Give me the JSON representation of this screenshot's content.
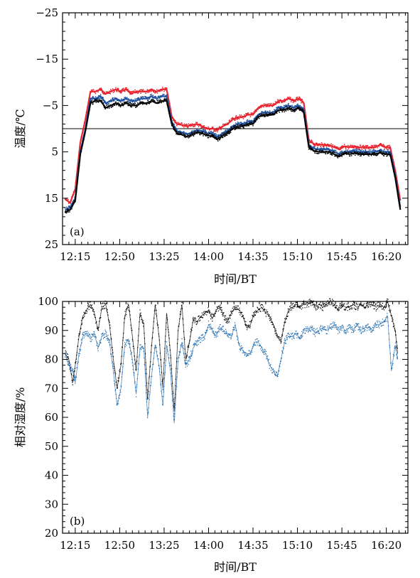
{
  "chart_data": [
    {
      "type": "scatter",
      "panel_label": "(a)",
      "xlabel": "时间/BT",
      "ylabel": "温度/℃",
      "x_ticks": [
        "12:15",
        "12:50",
        "13:25",
        "14:00",
        "14:35",
        "15:10",
        "15:45",
        "16:20"
      ],
      "x_tick_minutes": [
        0,
        35,
        70,
        105,
        140,
        175,
        210,
        245
      ],
      "x_range_minutes": [
        -10,
        262
      ],
      "y_ticks": [
        "−25",
        "−15",
        "−5",
        "5",
        "15",
        "25"
      ],
      "y_tick_values": [
        -25,
        -15,
        -5,
        5,
        15,
        25
      ],
      "ylim": [
        -25,
        25
      ],
      "y_inverted": true,
      "reference_line": 0,
      "grid": false,
      "series": [
        {
          "color": "#e8212b",
          "x": [
            -8,
            -4,
            0,
            4,
            8,
            12,
            16,
            20,
            24,
            28,
            32,
            36,
            40,
            44,
            48,
            52,
            56,
            60,
            64,
            68,
            72,
            76,
            80,
            84,
            88,
            92,
            96,
            100,
            104,
            108,
            112,
            116,
            120,
            124,
            128,
            132,
            136,
            140,
            144,
            148,
            152,
            156,
            160,
            164,
            168,
            172,
            176,
            180,
            184,
            188,
            192,
            196,
            200,
            204,
            208,
            212,
            216,
            220,
            224,
            228,
            232,
            236,
            240,
            244,
            248,
            252,
            256
          ],
          "y": [
            15.2,
            16,
            13,
            3,
            -2,
            -8,
            -8,
            -8.5,
            -7.5,
            -8,
            -8.5,
            -8,
            -8.5,
            -7.5,
            -8,
            -8,
            -8,
            -8.5,
            -8,
            -8.5,
            -8.5,
            -2.6,
            -1,
            -0.8,
            -0.5,
            -0.8,
            -1,
            -0.5,
            0,
            0,
            0.3,
            -0.5,
            -1,
            -2,
            -2.5,
            -2.5,
            -3,
            -3,
            -4.5,
            -5,
            -5,
            -5,
            -6,
            -6,
            -6.5,
            -6,
            -6.5,
            -5.5,
            2.5,
            3.3,
            3.5,
            3.5,
            3.5,
            4,
            4.5,
            3.8,
            4,
            3.8,
            4,
            4,
            4,
            4,
            3.5,
            4,
            4,
            9,
            15.5
          ]
        },
        {
          "color": "#1d4f9c",
          "x": [
            -8,
            -4,
            0,
            4,
            8,
            12,
            16,
            20,
            24,
            28,
            32,
            36,
            40,
            44,
            48,
            52,
            56,
            60,
            64,
            68,
            72,
            76,
            80,
            84,
            88,
            92,
            96,
            100,
            104,
            108,
            112,
            116,
            120,
            124,
            128,
            132,
            136,
            140,
            144,
            148,
            152,
            156,
            160,
            164,
            168,
            172,
            176,
            180,
            184,
            188,
            192,
            196,
            200,
            204,
            208,
            212,
            216,
            220,
            224,
            228,
            232,
            236,
            240,
            244,
            248,
            252,
            256
          ],
          "y": [
            17.5,
            17,
            15,
            5,
            0,
            -6.5,
            -6.5,
            -7,
            -5.5,
            -6,
            -6.5,
            -6,
            -6.5,
            -6,
            -6,
            -6.5,
            -6.5,
            -7,
            -6.5,
            -7,
            -7,
            -1.5,
            0.5,
            0.8,
            1.2,
            0.8,
            0.3,
            0.5,
            1,
            1,
            1.8,
            1,
            0.5,
            -0.5,
            -1,
            -1,
            -1.5,
            -1.5,
            -3,
            -3.5,
            -3.5,
            -3.5,
            -4.5,
            -4.5,
            -5,
            -4.5,
            -5,
            -4,
            3.5,
            4.3,
            4.5,
            4.5,
            4.5,
            5,
            5.5,
            5,
            5,
            4.8,
            5,
            5,
            5,
            5,
            4.7,
            5,
            5,
            10,
            17
          ]
        },
        {
          "color": "#000000",
          "x": [
            -8,
            -4,
            0,
            4,
            8,
            12,
            16,
            20,
            24,
            28,
            32,
            36,
            40,
            44,
            48,
            52,
            56,
            60,
            64,
            68,
            72,
            76,
            80,
            84,
            88,
            92,
            96,
            100,
            104,
            108,
            112,
            116,
            120,
            124,
            128,
            132,
            136,
            140,
            144,
            148,
            152,
            156,
            160,
            164,
            168,
            172,
            176,
            180,
            184,
            188,
            192,
            196,
            200,
            204,
            208,
            212,
            216,
            220,
            224,
            228,
            232,
            236,
            240,
            244,
            248,
            252,
            256
          ],
          "y": [
            18,
            17.5,
            15.5,
            5.5,
            0.5,
            -5.5,
            -6,
            -6,
            -4.5,
            -5,
            -5.5,
            -5,
            -5.5,
            -5,
            -5,
            -5.5,
            -5.5,
            -6,
            -5.5,
            -6,
            -6,
            -1,
            1,
            1.3,
            1.7,
            1.3,
            0.8,
            1,
            1.5,
            1.5,
            2.3,
            1.5,
            1,
            0,
            -0.5,
            -0.5,
            -1,
            -1,
            -2.5,
            -3,
            -3,
            -3,
            -4,
            -4,
            -4.5,
            -4,
            -4.5,
            -3.5,
            4,
            4.8,
            5,
            5,
            5,
            5.5,
            6,
            5.3,
            5.5,
            5.3,
            5.5,
            5.5,
            5.5,
            5.5,
            5.2,
            5.5,
            5.5,
            10.5,
            17.5
          ]
        }
      ]
    },
    {
      "type": "scatter",
      "panel_label": "(b)",
      "xlabel": "时间/BT",
      "ylabel": "相对湿度/%",
      "x_ticks": [
        "12:15",
        "12:50",
        "13:25",
        "14:00",
        "14:35",
        "15:10",
        "15:45",
        "16:20"
      ],
      "x_tick_minutes": [
        0,
        35,
        70,
        105,
        140,
        175,
        210,
        245
      ],
      "x_range_minutes": [
        -10,
        262
      ],
      "y_ticks": [
        "20",
        "30",
        "40",
        "50",
        "60",
        "70",
        "80",
        "90",
        "100"
      ],
      "y_tick_values": [
        20,
        30,
        40,
        50,
        60,
        70,
        80,
        90,
        100
      ],
      "ylim": [
        20,
        100
      ],
      "grid": false,
      "series": [
        {
          "color": "#000000",
          "x": [
            -8,
            -5,
            -2,
            0,
            3,
            6,
            9,
            12,
            15,
            18,
            21,
            24,
            27,
            30,
            33,
            36,
            39,
            42,
            45,
            48,
            51,
            54,
            57,
            60,
            63,
            66,
            69,
            72,
            75,
            78,
            81,
            84,
            87,
            90,
            93,
            96,
            99,
            102,
            105,
            108,
            111,
            114,
            117,
            120,
            123,
            126,
            129,
            132,
            135,
            138,
            141,
            144,
            147,
            150,
            153,
            156,
            159,
            162,
            165,
            168,
            171,
            174,
            177,
            180,
            183,
            186,
            189,
            192,
            195,
            198,
            201,
            204,
            207,
            210,
            213,
            216,
            219,
            222,
            225,
            228,
            231,
            234,
            237,
            240,
            243,
            246,
            249,
            252,
            254
          ],
          "y": [
            82,
            80,
            72,
            78,
            88,
            95,
            97,
            99,
            96,
            90,
            98,
            99,
            92,
            80,
            70,
            78,
            95,
            99,
            88,
            76,
            96,
            92,
            66,
            84,
            99,
            88,
            70,
            96,
            82,
            62,
            90,
            99,
            80,
            86,
            94,
            93,
            95,
            96,
            97,
            94,
            97,
            98,
            95,
            93,
            96,
            98,
            97,
            95,
            91,
            92,
            96,
            97,
            98,
            96,
            95,
            92,
            88,
            86,
            93,
            97,
            98,
            99,
            98,
            99,
            99,
            100,
            98,
            99,
            98,
            99,
            100,
            99,
            97,
            99,
            98,
            98,
            99,
            98,
            99,
            98,
            99,
            99,
            98,
            99,
            98,
            100,
            95,
            90,
            82
          ]
        },
        {
          "color": "#1f6bb0",
          "x": [
            -8,
            -5,
            -2,
            0,
            3,
            6,
            9,
            12,
            15,
            18,
            21,
            24,
            27,
            30,
            33,
            36,
            39,
            42,
            45,
            48,
            51,
            54,
            57,
            60,
            63,
            66,
            69,
            72,
            75,
            78,
            81,
            84,
            87,
            90,
            93,
            96,
            99,
            102,
            105,
            108,
            111,
            114,
            117,
            120,
            123,
            126,
            129,
            132,
            135,
            138,
            141,
            144,
            147,
            150,
            153,
            156,
            159,
            162,
            165,
            168,
            171,
            174,
            177,
            180,
            183,
            186,
            189,
            192,
            195,
            198,
            201,
            204,
            207,
            210,
            213,
            216,
            219,
            222,
            225,
            228,
            231,
            234,
            237,
            240,
            243,
            246,
            249,
            252,
            254
          ],
          "y": [
            82,
            78,
            76,
            72,
            82,
            88,
            89,
            87,
            89,
            84,
            88,
            89,
            86,
            76,
            64,
            70,
            85,
            87,
            80,
            68,
            84,
            84,
            60,
            74,
            85,
            78,
            64,
            85,
            76,
            58,
            80,
            86,
            78,
            80,
            84,
            86,
            87,
            88,
            92,
            90,
            88,
            91,
            90,
            89,
            88,
            92,
            85,
            83,
            82,
            82,
            86,
            86,
            84,
            82,
            78,
            76,
            74,
            80,
            86,
            88,
            88,
            89,
            87,
            90,
            90,
            91,
            89,
            90,
            91,
            90,
            91,
            92,
            90,
            91,
            90,
            91,
            90,
            92,
            90,
            91,
            91,
            90,
            92,
            92,
            93,
            95,
            76,
            85,
            80
          ]
        }
      ]
    }
  ]
}
